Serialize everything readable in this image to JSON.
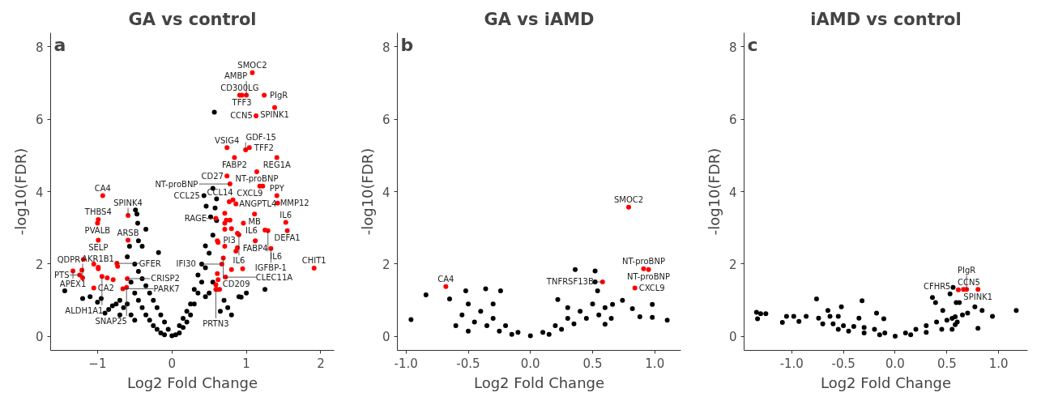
{
  "chart_data": [
    {
      "type": "scatter",
      "title": "GA vs control",
      "xlabel": "Log2 Fold Change",
      "ylabel": "-log10(FDR)",
      "xlim": [
        -1.63,
        2.18
      ],
      "ylim": [
        -0.38,
        8.38
      ],
      "xticks": [
        -1,
        0,
        1,
        2
      ],
      "yticks": [
        0,
        2,
        4,
        6,
        8
      ],
      "grid": false,
      "marker": "circle",
      "series": [
        {
          "color": "#000000",
          "x": [
            -1.44,
            -1.2,
            -1.1,
            -1.0,
            -0.95,
            -0.85,
            -0.8,
            -0.75,
            -0.7,
            -0.65,
            -0.49,
            -0.47,
            -0.46,
            -0.35,
            -0.57,
            -0.18,
            -0.45,
            -0.4,
            -0.6,
            -0.5,
            -0.45,
            -0.4,
            -0.35,
            -0.3,
            -0.25,
            -0.2,
            -0.15,
            -0.1,
            -0.05,
            0,
            -0.55,
            -0.5,
            -0.45,
            -0.4,
            -0.35,
            -0.3,
            -0.25,
            -0.2,
            -0.15,
            -0.1,
            -0.6,
            -0.55,
            -0.5,
            -0.7,
            -0.9,
            0.05,
            0.1,
            0.15,
            0.2,
            0.25,
            0.3,
            0.35,
            0.4,
            0.45,
            0.5,
            0.55,
            0.6,
            0.58,
            0.52,
            0.1,
            0.15,
            0.2,
            0.25,
            0.3,
            0.35,
            0.4,
            0.45,
            0.5,
            0.45,
            0.55,
            0.6,
            0.57,
            0.46,
            0.43,
            0.55,
            0.6,
            0.7,
            0.9,
            1.0,
            1.25,
            0.93,
            0.75,
            0.8,
            0.65
          ],
          "values": [
            1.26,
            1.05,
            1.1,
            0.95,
            1.05,
            0.75,
            0.85,
            0.9,
            1.0,
            0.8,
            3.49,
            3.38,
            3.13,
            2.96,
            2.49,
            2.32,
            2.64,
            2.49,
            2.2,
            2.0,
            1.8,
            1.6,
            1.4,
            1.2,
            1.0,
            0.8,
            0.6,
            0.4,
            0.2,
            0.02,
            1.5,
            1.2,
            1.0,
            0.8,
            0.6,
            0.45,
            0.3,
            0.2,
            0.1,
            0.05,
            0.9,
            0.6,
            0.45,
            0.6,
            0.65,
            0.05,
            0.1,
            0.25,
            0.4,
            0.6,
            0.9,
            1.2,
            1.5,
            1.9,
            2.3,
            2.8,
            3.2,
            3.55,
            3.3,
            0.3,
            0.5,
            0.7,
            0.9,
            1.3,
            1.7,
            2.0,
            2.5,
            1.2,
            1.1,
            1.5,
            1.3,
            6.19,
            3.6,
            3.89,
            4.09,
            3.8,
            1.0,
            1.1,
            1.2,
            1.3,
            1.09,
            0.8,
            0.6,
            0.7
          ]
        },
        {
          "color": "#ff0000",
          "x": [
            1.08,
            0.91,
            0.94,
            1.0,
            1.24,
            1.38,
            1.13,
            0.74,
            1.04,
            0.99,
            0.84,
            1.41,
            1.14,
            0.74,
            0.78,
            1.18,
            1.22,
            1.41,
            -0.93,
            0.77,
            0.82,
            0.86,
            0.71,
            1.11,
            0.59,
            0.71,
            0.73,
            0.78,
            0.96,
            1.42,
            1.53,
            1.25,
            1.29,
            1.55,
            1.12,
            1.33,
            0.71,
            0.8,
            0.88,
            0.9,
            0.61,
            0.62,
            0.71,
            0.88,
            0.86,
            0.69,
            0.67,
            0.61,
            0.62,
            0.72,
            0.8,
            0.95,
            0.59,
            0.64,
            0.59,
            1.91,
            -0.99,
            -1.0,
            -0.59,
            -0.99,
            -0.59,
            -1.19,
            -1.05,
            -0.99,
            -0.99,
            -1.33,
            -1.21,
            -1.24,
            -1.2,
            -0.94,
            -0.87,
            -0.79,
            -0.74,
            -0.73,
            -1.05,
            -0.6,
            -0.61,
            -0.66
          ],
          "values": [
            7.28,
            6.66,
            6.66,
            6.66,
            6.66,
            6.32,
            6.09,
            5.21,
            5.21,
            5.15,
            4.94,
            4.94,
            4.55,
            4.43,
            4.21,
            4.15,
            4.15,
            3.89,
            3.89,
            3.72,
            3.77,
            3.66,
            3.4,
            3.38,
            3.26,
            3.13,
            3.21,
            3.21,
            3.13,
            3.68,
            3.15,
            2.94,
            2.92,
            2.92,
            2.64,
            2.43,
            2.96,
            2.98,
            2.85,
            2.81,
            2.64,
            2.6,
            2.49,
            2.45,
            2.36,
            2.17,
            2.0,
            1.74,
            1.57,
            1.64,
            1.85,
            1.87,
            1.43,
            1.3,
            1.3,
            1.89,
            3.23,
            3.13,
            3.34,
            2.66,
            2.66,
            2.13,
            2.0,
            1.91,
            1.87,
            1.81,
            1.83,
            1.7,
            1.62,
            1.66,
            1.62,
            1.57,
            2.02,
            1.94,
            1.34,
            1.6,
            1.36,
            1.32
          ]
        }
      ],
      "annotations": [
        "a",
        {
          "text": "SMOC2",
          "x": 1.08,
          "y": 7.28
        },
        {
          "text": "CD300LG",
          "x": 0.91,
          "y": 6.66
        },
        {
          "text": "TFF3",
          "x": 0.94,
          "y": 6.66
        },
        {
          "text": "AMBP",
          "x": 1.0,
          "y": 6.66
        },
        {
          "text": "PIgR",
          "x": 1.24,
          "y": 6.66
        },
        {
          "text": "SPINK1",
          "x": 1.38,
          "y": 6.32
        },
        {
          "text": "CCN5",
          "x": 1.13,
          "y": 6.09
        },
        {
          "text": "VSIG4",
          "x": 0.74,
          "y": 5.21
        },
        {
          "text": "TFF2",
          "x": 1.04,
          "y": 5.21
        },
        {
          "text": "GDF-15",
          "x": 0.99,
          "y": 5.15
        },
        {
          "text": "REG1A",
          "x": 1.41,
          "y": 4.94
        },
        {
          "text": "FABP2",
          "x": 0.84,
          "y": 4.94
        },
        {
          "text": "NT-proBNP",
          "x": 1.14,
          "y": 4.55
        },
        {
          "text": "CD27",
          "x": 0.74,
          "y": 4.43
        },
        {
          "text": "CXCL9",
          "x": 1.22,
          "y": 4.15
        },
        {
          "text": "NT-proBNP",
          "x": 0.78,
          "y": 4.21
        },
        {
          "text": "CCL25",
          "x": 0.43,
          "y": 3.89
        },
        {
          "text": "CCL14",
          "x": 0.82,
          "y": 3.77
        },
        {
          "text": "PPY",
          "x": 1.41,
          "y": 3.89
        },
        {
          "text": "ANGPTL4",
          "x": 0.86,
          "y": 3.66
        },
        {
          "text": "RAGE",
          "x": 0.59,
          "y": 3.26
        },
        {
          "text": "MMP12",
          "x": 1.42,
          "y": 3.68
        },
        {
          "text": "MB",
          "x": 1.11,
          "y": 3.38
        },
        {
          "text": "IL6",
          "x": 1.53,
          "y": 3.15
        },
        {
          "text": "IL6",
          "x": 0.96,
          "y": 3.13
        },
        {
          "text": "FABP4",
          "x": 1.12,
          "y": 2.64
        },
        {
          "text": "DEFA1",
          "x": 1.55,
          "y": 2.92
        },
        {
          "text": "IL6",
          "x": 0.9,
          "y": 2.81
        },
        {
          "text": "IL6",
          "x": 1.29,
          "y": 2.92
        },
        {
          "text": "IGFBP-1",
          "x": 1.33,
          "y": 2.43
        },
        {
          "text": "PI3",
          "x": 0.88,
          "y": 2.45
        },
        {
          "text": "CD209",
          "x": 0.69,
          "y": 2.17
        },
        {
          "text": "IFI30",
          "x": 0.67,
          "y": 2.0
        },
        {
          "text": "CHIT1",
          "x": 1.91,
          "y": 1.89
        },
        {
          "text": "CLEC11A",
          "x": 0.72,
          "y": 1.64
        },
        {
          "text": "PRTN3",
          "x": 0.59,
          "y": 1.3
        },
        {
          "text": "CA4",
          "x": -0.93,
          "y": 3.89
        },
        {
          "text": "THBS4",
          "x": -0.99,
          "y": 3.23
        },
        {
          "text": "PVALB",
          "x": -1.0,
          "y": 3.13
        },
        {
          "text": "SPINK4",
          "x": -0.59,
          "y": 3.34
        },
        {
          "text": "ARSB",
          "x": -0.59,
          "y": 2.66
        },
        {
          "text": "SELP",
          "x": -0.99,
          "y": 2.66
        },
        {
          "text": "QDPR",
          "x": -1.19,
          "y": 2.13
        },
        {
          "text": "GFER",
          "x": -0.74,
          "y": 2.02
        },
        {
          "text": "APEX1",
          "x": -1.33,
          "y": 1.81
        },
        {
          "text": "PTS",
          "x": -1.24,
          "y": 1.7
        },
        {
          "text": "ALDH1A1",
          "x": -0.94,
          "y": 1.66
        },
        {
          "text": "CRISP2",
          "x": -0.6,
          "y": 1.6
        },
        {
          "text": "CA2",
          "x": -1.05,
          "y": 1.34
        },
        {
          "text": "SNAP25",
          "x": -0.61,
          "y": 1.36
        },
        {
          "text": "AKR1B1",
          "x": -1.2,
          "y": 1.62
        },
        {
          "text": "PARK7",
          "x": -0.66,
          "y": 1.32
        }
      ]
    },
    {
      "type": "scatter",
      "title": "GA vs iAMD",
      "xlabel": "Log2 Fold Change",
      "ylabel": "-log10(FDR)",
      "xlim": [
        -1.07,
        1.21
      ],
      "ylim": [
        -0.38,
        8.38
      ],
      "xticks": [
        {
          "value": -1,
          "label": "-1.0"
        },
        {
          "value": -0.5,
          "label": "-0.5"
        },
        {
          "value": 0,
          "label": "0.0"
        },
        {
          "value": 0.5,
          "label": "0.5"
        },
        {
          "value": 1,
          "label": "1.0"
        }
      ],
      "yticks": [
        0,
        2,
        4,
        6,
        8
      ],
      "grid": false,
      "marker": "circle",
      "series": [
        {
          "color": "#000000",
          "x": [
            -0.96,
            -0.84,
            -0.65,
            -0.52,
            -0.36,
            -0.24,
            0.36,
            0.52,
            0.52,
            0.54,
            0.98,
            1.1,
            0.98,
            0.88,
            0.82,
            0.74,
            0.66,
            0.6,
            0.22,
            -0.5,
            -0.4,
            -0.3,
            -0.2,
            -0.1,
            0,
            0.1,
            0.2,
            0.3,
            0.4,
            0.5,
            -0.45,
            -0.35,
            -0.25,
            -0.15,
            0.15,
            0.25,
            0.35,
            0.45,
            -0.55,
            -0.6,
            -0.5,
            0.55,
            0.6,
            0.65,
            -0.3,
            0.3
          ],
          "values": [
            0.47,
            1.15,
            1.04,
            1.26,
            1.32,
            1.26,
            1.85,
            1.81,
            1.51,
            1.26,
            0.89,
            0.45,
            0.53,
            0.55,
            0.77,
            1.0,
            0.89,
            0.34,
            1.02,
            0.9,
            0.7,
            0.5,
            0.3,
            0.12,
            0.02,
            0.12,
            0.3,
            0.5,
            0.7,
            0.9,
            0.4,
            0.3,
            0.15,
            0.06,
            0.06,
            0.2,
            0.35,
            0.5,
            0.6,
            0.3,
            0.15,
            0.6,
            0.8,
            0.5,
            0.9,
            0.8
          ]
        },
        {
          "color": "#ff0000",
          "x": [
            0.79,
            0.91,
            0.95,
            0.58,
            0.84,
            -0.68
          ],
          "values": [
            3.57,
            1.87,
            1.85,
            1.51,
            1.34,
            1.38
          ]
        }
      ],
      "annotations": [
        "b",
        {
          "text": "CA4",
          "x": -0.68,
          "y": 1.38
        },
        {
          "text": "SMOC2",
          "x": 0.79,
          "y": 3.57
        },
        {
          "text": "NT-proBNP",
          "x": 0.91,
          "y": 1.87
        },
        {
          "text": "TNFRSF13B",
          "x": 0.58,
          "y": 1.51
        },
        {
          "text": "NT-proBNP",
          "x": 0.95,
          "y": 1.85
        },
        {
          "text": "CXCL9",
          "x": 0.84,
          "y": 1.34
        }
      ]
    },
    {
      "type": "scatter",
      "title": "iAMD vs control",
      "xlabel": "Log2 Fold Change",
      "ylabel": "-log10(FDR)",
      "xlim": [
        -1.46,
        1.28
      ],
      "ylim": [
        -0.38,
        8.38
      ],
      "xticks": [
        {
          "value": -1,
          "label": "-1.0"
        },
        {
          "value": -0.5,
          "label": "-0.5"
        },
        {
          "value": 0,
          "label": "0.0"
        },
        {
          "value": 0.5,
          "label": "0.5"
        },
        {
          "value": 1,
          "label": "1.0"
        }
      ],
      "yticks": [
        0,
        2,
        4,
        6,
        8
      ],
      "grid": false,
      "marker": "circle",
      "series": [
        {
          "color": "#000000",
          "x": [
            0.56,
            0.53,
            0.36,
            0.39,
            0.59,
            0.62,
            0.77,
            0.84,
            0.94,
            1.17,
            0.8,
            0.46,
            0.58,
            -0.76,
            -0.32,
            -0.52,
            -0.65,
            -1.34,
            -1.33,
            -1.3,
            -1.25,
            -1.09,
            -1.05,
            -0.98,
            -0.93,
            -0.86,
            -0.74,
            -0.63,
            -0.55,
            -0.35,
            -0.18,
            -0.11,
            -0.7,
            -0.6,
            -0.5,
            -0.4,
            -0.3,
            -0.2,
            -0.1,
            0,
            0.1,
            0.2,
            0.3,
            0.4,
            0.5,
            0.55,
            -0.45,
            -0.3,
            -0.15,
            0.15,
            0.3,
            0.45,
            0.6,
            0.65,
            0.7,
            0.58,
            0.55,
            -0.55
          ],
          "values": [
            1.36,
            1.18,
            1.08,
            0.94,
            0.94,
            0.94,
            0.82,
            0.72,
            0.56,
            0.72,
            0.23,
            0.72,
            0.33,
            1.04,
            0.99,
            0.82,
            0.72,
            0.67,
            0.49,
            0.63,
            0.63,
            0.39,
            0.56,
            0.56,
            0.42,
            0.56,
            0.51,
            0.56,
            0.56,
            0.51,
            0.65,
            0.49,
            0.35,
            0.35,
            0.3,
            0.28,
            0.25,
            0.2,
            0.1,
            0.01,
            0.1,
            0.2,
            0.3,
            0.4,
            0.45,
            0.5,
            0.15,
            0.1,
            0.05,
            0.05,
            0.12,
            0.2,
            0.4,
            0.6,
            0.65,
            0.55,
            0.2,
            0.2
          ]
        },
        {
          "color": "#ff0000",
          "x": [
            0.61,
            0.66,
            0.69,
            0.8
          ],
          "values": [
            1.29,
            1.3,
            1.3,
            1.3
          ]
        }
      ],
      "annotations": [
        "c",
        {
          "text": "CCN5",
          "x": 0.61,
          "y": 1.29
        },
        {
          "text": "SPINK1",
          "x": 0.8,
          "y": 1.3
        },
        {
          "text": "CFHR5",
          "x": 0.53,
          "y": 1.18
        },
        {
          "text": "PIgR",
          "x": 0.69,
          "y": 1.3
        }
      ]
    }
  ]
}
